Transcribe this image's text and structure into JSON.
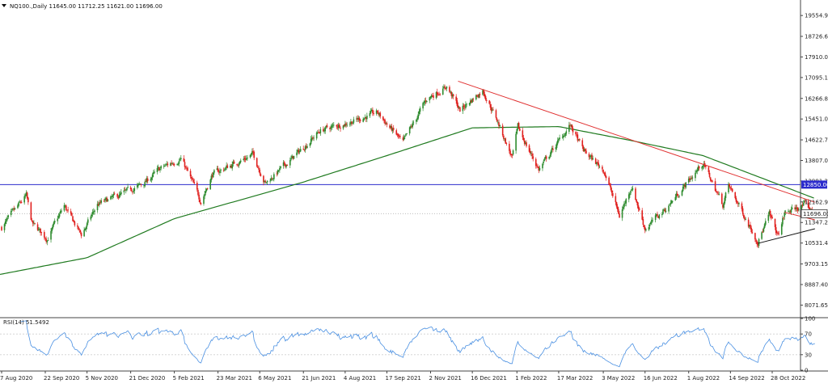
{
  "chart_data": {
    "type": "candlestick",
    "header": "NQ100.,Daily  11645.00 11712.25 11621.00 11696.00",
    "symbol": "NQ100.",
    "timeframe": "Daily",
    "last_bar": {
      "open": 11645.0,
      "high": 11712.25,
      "low": 11621.0,
      "close": 11696.0
    },
    "price_ylim": [
      7605,
      20105
    ],
    "y_ticks": [
      "19554.90",
      "18726.60",
      "17910.00",
      "17095.10",
      "16266.80",
      "15451.05",
      "14622.75",
      "13807.00",
      "12991.25",
      "12162.95",
      "11347.20",
      "10531.45",
      "9703.15",
      "8887.40",
      "8071.65"
    ],
    "x_ticks": [
      "7 Aug 2020",
      "22 Sep 2020",
      "5 Nov 2020",
      "21 Dec 2020",
      "5 Feb 2021",
      "23 Mar 2021",
      "6 May 2021",
      "21 Jun 2021",
      "4 Aug 2021",
      "17 Sep 2021",
      "2 Nov 2021",
      "16 Dec 2021",
      "1 Feb 2022",
      "17 Mar 2022",
      "3 May 2022",
      "16 Jun 2022",
      "1 Aug 2022",
      "14 Sep 2022",
      "28 Oct 2022"
    ],
    "horizontal_line": {
      "value": 12850.0,
      "label": "12850.00",
      "color": "#2b2bcc"
    },
    "current_price": {
      "value": 11696.0,
      "label": "11696.00"
    },
    "price_anchors": [
      {
        "date": "2020-08-07",
        "price": 11150
      },
      {
        "date": "2020-09-02",
        "price": 12400
      },
      {
        "date": "2020-09-08",
        "price": 11300
      },
      {
        "date": "2020-09-24",
        "price": 10700
      },
      {
        "date": "2020-10-12",
        "price": 12000
      },
      {
        "date": "2020-10-30",
        "price": 10850
      },
      {
        "date": "2020-11-16",
        "price": 12050
      },
      {
        "date": "2020-12-14",
        "price": 12500
      },
      {
        "date": "2021-01-04",
        "price": 12900
      },
      {
        "date": "2021-01-22",
        "price": 13500
      },
      {
        "date": "2021-02-12",
        "price": 13900
      },
      {
        "date": "2021-03-05",
        "price": 12200
      },
      {
        "date": "2021-03-17",
        "price": 13250
      },
      {
        "date": "2021-04-29",
        "price": 14050
      },
      {
        "date": "2021-05-12",
        "price": 12900
      },
      {
        "date": "2021-06-04",
        "price": 13700
      },
      {
        "date": "2021-07-09",
        "price": 15000
      },
      {
        "date": "2021-08-10",
        "price": 15350
      },
      {
        "date": "2021-09-07",
        "price": 15700
      },
      {
        "date": "2021-10-04",
        "price": 14500
      },
      {
        "date": "2021-10-29",
        "price": 16250
      },
      {
        "date": "2021-11-19",
        "price": 16750
      },
      {
        "date": "2021-12-03",
        "price": 15800
      },
      {
        "date": "2021-12-27",
        "price": 16600
      },
      {
        "date": "2022-01-10",
        "price": 15500
      },
      {
        "date": "2022-01-27",
        "price": 13900
      },
      {
        "date": "2022-02-02",
        "price": 15100
      },
      {
        "date": "2022-02-24",
        "price": 13450
      },
      {
        "date": "2022-03-29",
        "price": 15200
      },
      {
        "date": "2022-04-12",
        "price": 14200
      },
      {
        "date": "2022-05-04",
        "price": 13400
      },
      {
        "date": "2022-05-20",
        "price": 11600
      },
      {
        "date": "2022-06-02",
        "price": 12800
      },
      {
        "date": "2022-06-16",
        "price": 11100
      },
      {
        "date": "2022-07-08",
        "price": 11900
      },
      {
        "date": "2022-08-16",
        "price": 13700
      },
      {
        "date": "2022-09-06",
        "price": 12050
      },
      {
        "date": "2022-09-12",
        "price": 12800
      },
      {
        "date": "2022-10-13",
        "price": 10600
      },
      {
        "date": "2022-10-25",
        "price": 11650
      },
      {
        "date": "2022-11-03",
        "price": 10800
      },
      {
        "date": "2022-11-10",
        "price": 11700
      },
      {
        "date": "2022-12-01",
        "price": 12050
      },
      {
        "date": "2022-12-12",
        "price": 11696
      }
    ],
    "ma_anchors": [
      {
        "date": "2020-07-24",
        "value": 9200
      },
      {
        "date": "2020-11-05",
        "value": 9950
      },
      {
        "date": "2021-02-05",
        "value": 11500
      },
      {
        "date": "2021-06-21",
        "value": 12950
      },
      {
        "date": "2021-09-17",
        "value": 14000
      },
      {
        "date": "2021-12-16",
        "value": 15100
      },
      {
        "date": "2022-03-17",
        "value": 15150
      },
      {
        "date": "2022-06-01",
        "value": 14600
      },
      {
        "date": "2022-08-16",
        "value": 14000
      },
      {
        "date": "2022-10-28",
        "value": 12950
      },
      {
        "date": "2022-12-12",
        "value": 12300
      }
    ],
    "trendlines": [
      {
        "from": {
          "date": "2021-12-01",
          "price": 16950
        },
        "to": {
          "date": "2022-12-12",
          "price": 12150
        },
        "color": "#e03030"
      },
      {
        "from": {
          "date": "2022-11-10",
          "price": 11750
        },
        "to": {
          "date": "2022-12-12",
          "price": 11450
        },
        "color": "#e03030"
      },
      {
        "from": {
          "date": "2022-10-13",
          "price": 10520
        },
        "to": {
          "date": "2022-12-12",
          "price": 11100
        },
        "color": "#111111"
      }
    ],
    "rsi": {
      "label": "RSI(14) 51.5492",
      "value": 51.5492,
      "period": 14,
      "ylim": [
        0,
        100
      ],
      "y_ticks": [
        "100",
        "70",
        "30",
        "0"
      ],
      "levels": [
        70,
        30
      ]
    },
    "colors": {
      "up": "#2e8b2e",
      "down": "#e0201e",
      "ma": "#1f7a1f",
      "rsi_line": "#4a90e2",
      "grid": "#cfcfcf"
    }
  }
}
